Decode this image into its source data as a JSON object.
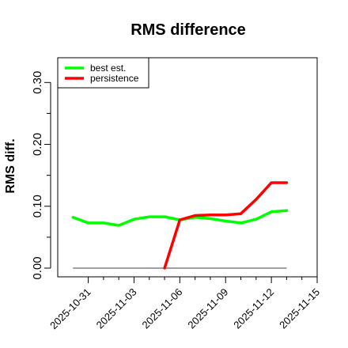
{
  "chart_data": {
    "type": "line",
    "title": "RMS difference",
    "ylabel": "RMS diff.",
    "xlabel": "",
    "xlim": [
      "2025-10-29",
      "2025-11-15"
    ],
    "ylim": [
      0.0,
      0.34
    ],
    "y_ticks": [
      {
        "value": 0.0,
        "label": "0.00"
      },
      {
        "value": 0.1,
        "label": "0.10"
      },
      {
        "value": 0.2,
        "label": "0.20"
      },
      {
        "value": 0.3,
        "label": "0.30"
      }
    ],
    "y_minor_ticks": [
      0.05,
      0.15,
      0.25
    ],
    "x_ticks": [
      {
        "value": "2025-10-31",
        "label": "2025-10-31"
      },
      {
        "value": "2025-11-03",
        "label": "2025-11-03"
      },
      {
        "value": "2025-11-06",
        "label": "2025-11-06"
      },
      {
        "value": "2025-11-09",
        "label": "2025-11-09"
      },
      {
        "value": "2025-11-12",
        "label": "2025-11-12"
      },
      {
        "value": "2025-11-15",
        "label": "2025-11-15"
      }
    ],
    "x_minor_ticks": [
      "2025-11-01",
      "2025-11-02",
      "2025-11-04",
      "2025-11-05",
      "2025-11-07",
      "2025-11-08",
      "2025-11-10",
      "2025-11-11",
      "2025-11-13",
      "2025-11-14"
    ],
    "legend_position": "top-left",
    "grid": false,
    "baseline": {
      "y": 0.0,
      "x_start": "2025-10-30",
      "x_end": "2025-11-13",
      "color": "#808080"
    },
    "series": [
      {
        "name": "best est.",
        "color": "#00ff00",
        "points": [
          {
            "x": "2025-10-30",
            "y": 0.082
          },
          {
            "x": "2025-10-31",
            "y": 0.073
          },
          {
            "x": "2025-11-01",
            "y": 0.073
          },
          {
            "x": "2025-11-02",
            "y": 0.069
          },
          {
            "x": "2025-11-03",
            "y": 0.079
          },
          {
            "x": "2025-11-04",
            "y": 0.083
          },
          {
            "x": "2025-11-05",
            "y": 0.083
          },
          {
            "x": "2025-11-06",
            "y": 0.078
          },
          {
            "x": "2025-11-07",
            "y": 0.082
          },
          {
            "x": "2025-11-08",
            "y": 0.08
          },
          {
            "x": "2025-11-09",
            "y": 0.076
          },
          {
            "x": "2025-11-10",
            "y": 0.073
          },
          {
            "x": "2025-11-11",
            "y": 0.079
          },
          {
            "x": "2025-11-12",
            "y": 0.091
          },
          {
            "x": "2025-11-13",
            "y": 0.093
          }
        ]
      },
      {
        "name": "persistence",
        "color": "#ff0000",
        "points": [
          {
            "x": "2025-11-05",
            "y": 0.0
          },
          {
            "x": "2025-11-06",
            "y": 0.078
          },
          {
            "x": "2025-11-07",
            "y": 0.085
          },
          {
            "x": "2025-11-08",
            "y": 0.086
          },
          {
            "x": "2025-11-09",
            "y": 0.086
          },
          {
            "x": "2025-11-10",
            "y": 0.088
          },
          {
            "x": "2025-11-11",
            "y": 0.111
          },
          {
            "x": "2025-11-12",
            "y": 0.138
          },
          {
            "x": "2025-11-13",
            "y": 0.138
          }
        ]
      }
    ]
  }
}
